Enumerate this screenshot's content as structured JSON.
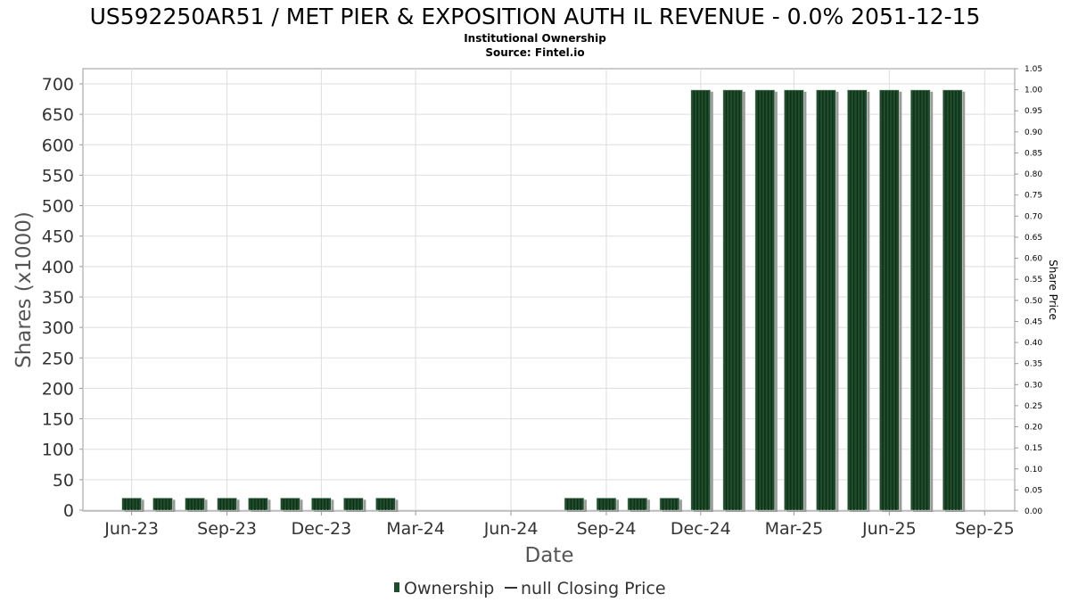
{
  "chart_data": {
    "type": "bar",
    "title": "US592250AR51 / MET PIER & EXPOSITION AUTH IL REVENUE - 0.0% 2051-12-15",
    "subtitle_lines": [
      "Institutional Ownership",
      "Source: Fintel.io"
    ],
    "xlabel": "Date",
    "ylabel": "Shares (x1000)",
    "y2label": "Share Price",
    "ylim": [
      0,
      700
    ],
    "y2lim": [
      0,
      1.05
    ],
    "yticks": [
      0,
      50,
      100,
      150,
      200,
      250,
      300,
      350,
      400,
      450,
      500,
      550,
      600,
      650,
      700
    ],
    "y2ticks": [
      "0.00",
      "0.05",
      "0.10",
      "0.15",
      "0.20",
      "0.25",
      "0.30",
      "0.35",
      "0.40",
      "0.45",
      "0.50",
      "0.55",
      "0.60",
      "0.65",
      "0.70",
      "0.75",
      "0.80",
      "0.85",
      "0.90",
      "0.95",
      "1.00",
      "1.05"
    ],
    "x_ticks": [
      "Jun-23",
      "Sep-23",
      "Dec-23",
      "Mar-24",
      "Jun-24",
      "Sep-24",
      "Dec-24",
      "Mar-25",
      "Jun-25",
      "Sep-25"
    ],
    "grid": true,
    "legend_position": "bottom",
    "legend": [
      {
        "label": "Ownership",
        "color": "#1e4d2b"
      },
      {
        "label": "null Closing Price",
        "color": "#333333"
      }
    ],
    "series": [
      {
        "name": "Ownership",
        "color": "#1e4d2b",
        "values": [
          {
            "x": "2023-06-01",
            "y": 20
          },
          {
            "x": "2023-07-01",
            "y": 20
          },
          {
            "x": "2023-08-01",
            "y": 20
          },
          {
            "x": "2023-09-01",
            "y": 20
          },
          {
            "x": "2023-10-01",
            "y": 20
          },
          {
            "x": "2023-11-01",
            "y": 20
          },
          {
            "x": "2023-12-01",
            "y": 20
          },
          {
            "x": "2024-01-01",
            "y": 20
          },
          {
            "x": "2024-02-01",
            "y": 20
          },
          {
            "x": "2024-08-01",
            "y": 20
          },
          {
            "x": "2024-09-01",
            "y": 20
          },
          {
            "x": "2024-10-01",
            "y": 20
          },
          {
            "x": "2024-11-01",
            "y": 20
          },
          {
            "x": "2024-12-01",
            "y": 690
          },
          {
            "x": "2025-01-01",
            "y": 690
          },
          {
            "x": "2025-02-01",
            "y": 690
          },
          {
            "x": "2025-03-01",
            "y": 690
          },
          {
            "x": "2025-04-01",
            "y": 690
          },
          {
            "x": "2025-05-01",
            "y": 690
          },
          {
            "x": "2025-06-01",
            "y": 690
          },
          {
            "x": "2025-07-01",
            "y": 690
          },
          {
            "x": "2025-08-01",
            "y": 690
          }
        ]
      }
    ]
  }
}
